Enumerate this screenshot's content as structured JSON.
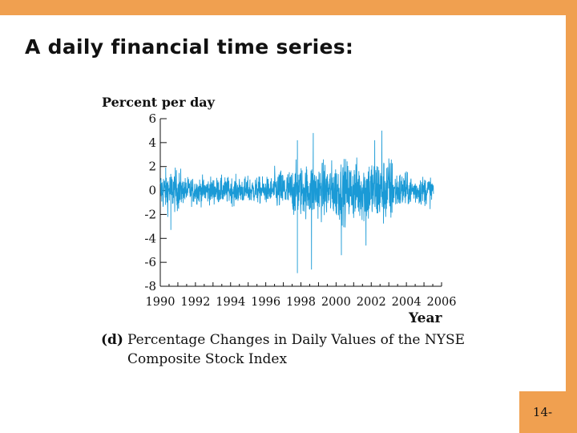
{
  "slide": {
    "title": "A daily financial time series:",
    "page_number": "14-",
    "accent_color": "#f0a050"
  },
  "chart_data": {
    "type": "line",
    "title": "",
    "ylabel": "Percent per day",
    "xlabel": "Year",
    "caption_label": "(d)",
    "caption_line1": "Percentage Changes in Daily  Values of the NYSE",
    "caption_line2": "Composite Stock Index",
    "xlim": [
      1990,
      2006
    ],
    "ylim": [
      -8,
      6
    ],
    "x_ticks": [
      "1990",
      "1992",
      "1994",
      "1996",
      "1998",
      "2000",
      "2002",
      "2004",
      "2006"
    ],
    "y_ticks": [
      "6",
      "4",
      "2",
      "0",
      "-2",
      "-4",
      "-6",
      "-8"
    ],
    "series_color": "#1a9ad6",
    "notable_points": [
      {
        "x": 1997.8,
        "y": -6.9
      },
      {
        "x": 1998.6,
        "y": -6.6
      },
      {
        "x": 1990.6,
        "y": -3.3
      },
      {
        "x": 2000.3,
        "y": -5.4
      },
      {
        "x": 2001.7,
        "y": -4.6
      },
      {
        "x": 2002.6,
        "y": 5.0
      },
      {
        "x": 2002.2,
        "y": 4.2
      },
      {
        "x": 1998.7,
        "y": 4.8
      },
      {
        "x": 1997.8,
        "y": 4.2
      }
    ]
  }
}
